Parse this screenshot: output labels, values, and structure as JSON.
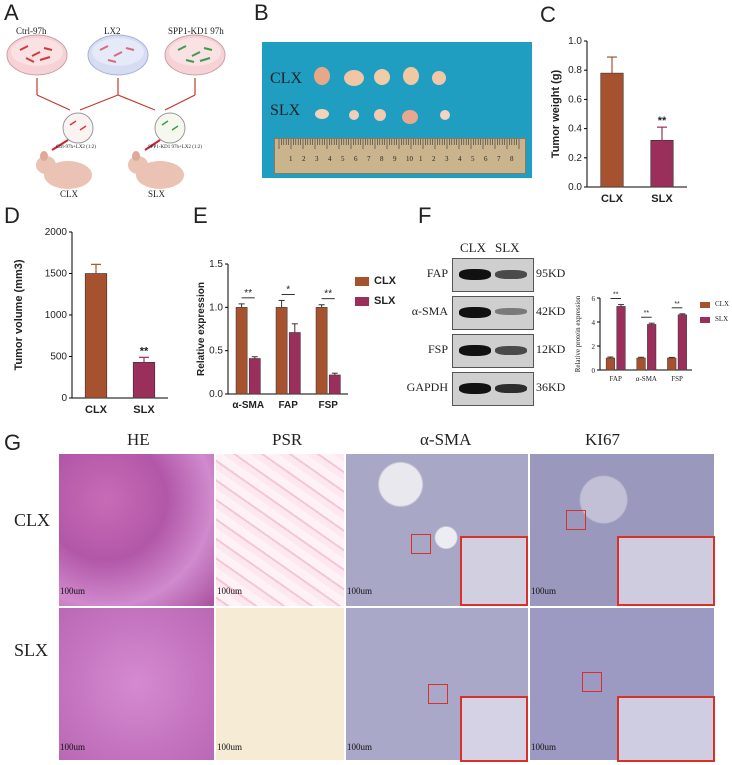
{
  "panels": {
    "a": "A",
    "b": "B",
    "c": "C",
    "d": "D",
    "e": "E",
    "f": "F",
    "g": "G"
  },
  "panelA": {
    "dish1": "Ctrl-97h",
    "dish2": "LX2",
    "dish3": "SPP1-KD1 97h",
    "mix1": "Ctrl-97h+LX2 (1:2)",
    "mix2": "SPP1-KD1 97h+LX2 (1:2)",
    "mouse1": "CLX",
    "mouse2": "SLX"
  },
  "panelB": {
    "row1": "CLX",
    "row2": "SLX",
    "ruler": [
      "1",
      "2",
      "3",
      "4",
      "5",
      "6",
      "7",
      "8",
      "9",
      "10",
      "1",
      "2",
      "3",
      "4",
      "5",
      "6",
      "7",
      "8"
    ]
  },
  "colors": {
    "clx": "#a6522e",
    "slx": "#9a2f5c",
    "red": "#d9302a"
  },
  "chart_data": [
    {
      "id": "C",
      "type": "bar",
      "categories": [
        "CLX",
        "SLX"
      ],
      "values": [
        0.78,
        0.32
      ],
      "errors": [
        0.11,
        0.09
      ],
      "ylabel": "Tumor weight (g)",
      "ylim": [
        0,
        1.0
      ],
      "yticks": [
        "0.0",
        "0.2",
        "0.4",
        "0.6",
        "0.8",
        "1.0"
      ],
      "sig": "**"
    },
    {
      "id": "D",
      "type": "bar",
      "categories": [
        "CLX",
        "SLX"
      ],
      "values": [
        1500,
        430
      ],
      "errors": [
        110,
        60
      ],
      "ylabel": "Tumor volume (mm3)",
      "ylim": [
        0,
        2000
      ],
      "yticks": [
        "0",
        "500",
        "1000",
        "1500",
        "2000"
      ],
      "sig": "**"
    },
    {
      "id": "E",
      "type": "bar",
      "categories": [
        "α-SMA",
        "FAP",
        "FSP"
      ],
      "series": [
        {
          "name": "CLX",
          "values": [
            1.0,
            1.0,
            1.0
          ]
        },
        {
          "name": "SLX",
          "values": [
            0.41,
            0.71,
            0.22
          ]
        }
      ],
      "errors": [
        [
          0.04,
          0.08,
          0.03
        ],
        [
          0.02,
          0.1,
          0.02
        ]
      ],
      "ylabel": "Relative expression",
      "ylim": [
        0,
        1.5
      ],
      "yticks": [
        "0.0",
        "0.5",
        "1.0",
        "1.5"
      ],
      "sig": [
        "**",
        "*",
        "**"
      ]
    },
    {
      "id": "F",
      "type": "bar",
      "categories": [
        "FAP",
        "α-SMA",
        "FSP"
      ],
      "series": [
        {
          "name": "CLX",
          "values": [
            1.0,
            1.0,
            1.0
          ]
        },
        {
          "name": "SLX",
          "values": [
            5.3,
            3.8,
            4.6
          ]
        }
      ],
      "errors": [
        [
          0.08,
          0.06,
          0.05
        ],
        [
          0.15,
          0.1,
          0.08
        ]
      ],
      "ylabel": "Relative protein expression",
      "ylim": [
        0,
        6
      ],
      "yticks": [
        "0",
        "2",
        "4",
        "6"
      ],
      "sig": [
        "**",
        "**",
        "**"
      ]
    }
  ],
  "westernBlot": {
    "header": [
      "CLX",
      "SLX"
    ],
    "rows": [
      {
        "label": "FAP",
        "kd": "95KD"
      },
      {
        "label": "α-SMA",
        "kd": "42KD"
      },
      {
        "label": "FSP",
        "kd": "12KD"
      },
      {
        "label": "GAPDH",
        "kd": "36KD"
      }
    ]
  },
  "panelG": {
    "columns": [
      "HE",
      "PSR",
      "α-SMA",
      "KI67"
    ],
    "rows": [
      "CLX",
      "SLX"
    ],
    "scale": "100um"
  }
}
